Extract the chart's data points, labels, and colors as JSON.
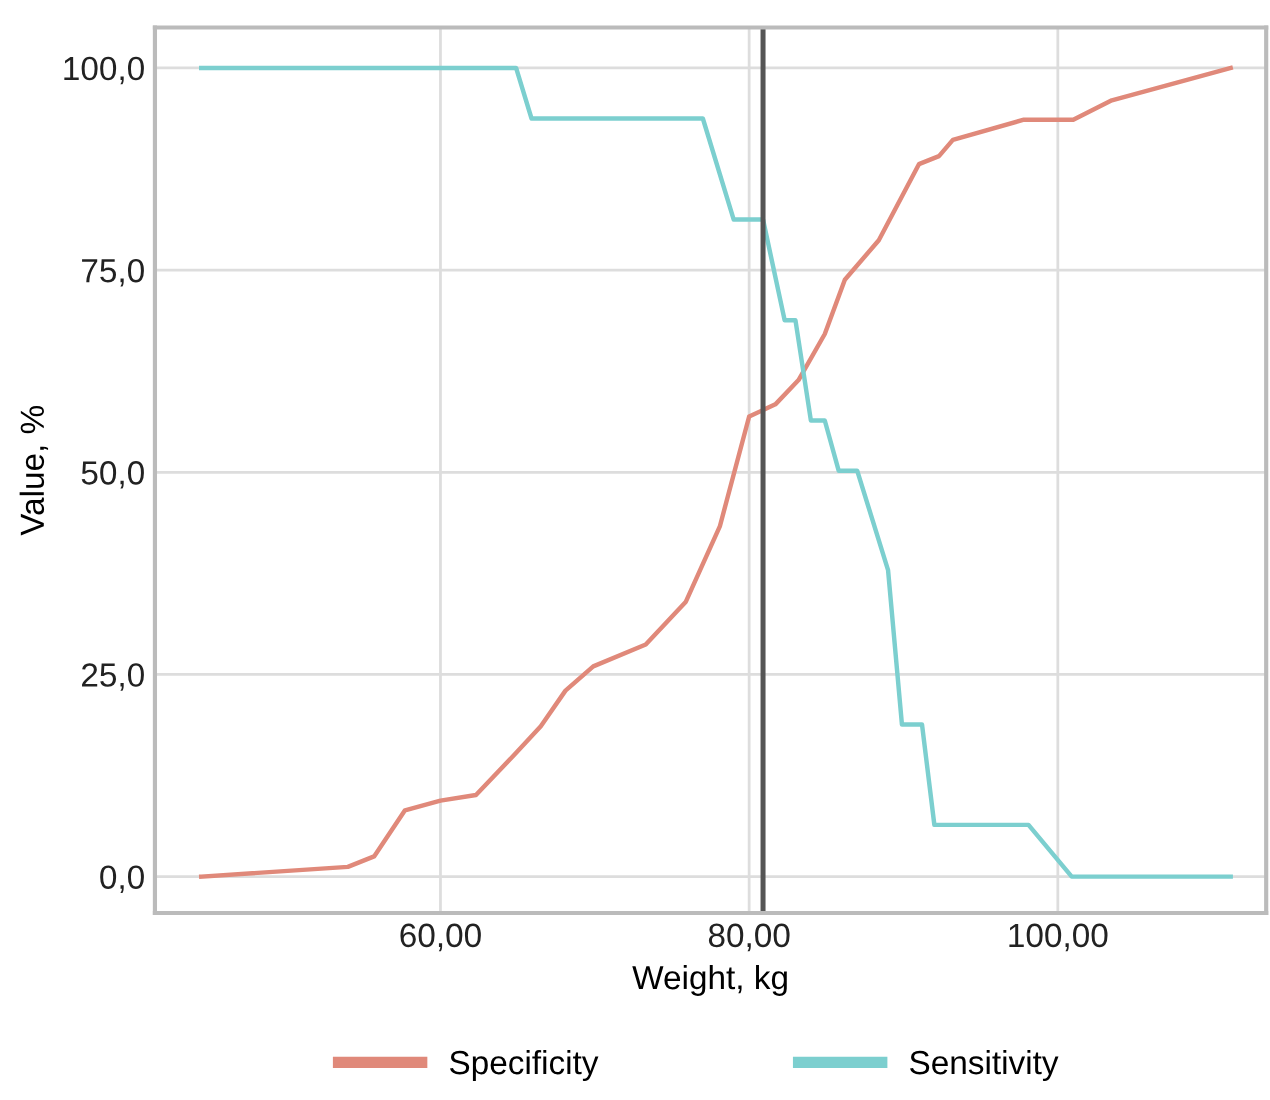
{
  "chart_data": {
    "type": "line",
    "xlabel": "Weight, kg",
    "ylabel": "Value, %",
    "xlim": [
      41.5,
      113.5
    ],
    "ylim": [
      -4.5,
      105
    ],
    "xticks": [
      {
        "value": 60,
        "label": "60,00"
      },
      {
        "value": 80,
        "label": "80,00"
      },
      {
        "value": 100,
        "label": "100,00"
      }
    ],
    "yticks": [
      {
        "value": 0,
        "label": "0,0"
      },
      {
        "value": 25,
        "label": "25,0"
      },
      {
        "value": 50,
        "label": "50,0"
      },
      {
        "value": 75,
        "label": "75,0"
      },
      {
        "value": 100,
        "label": "100,0"
      }
    ],
    "grid": true,
    "legend": "bottom",
    "line_style": "solid",
    "ref_lines": [
      {
        "axis": "x",
        "value": 80.9,
        "color": "#555555"
      }
    ],
    "series": [
      {
        "name": "Specificity",
        "color": "#e0897a",
        "x": [
          44.5,
          54.0,
          55.7,
          57.7,
          60,
          62.3,
          64.8,
          66.5,
          68.1,
          69.9,
          73.3,
          75.9,
          78.1,
          80,
          81.7,
          83.2,
          84.9,
          86.2,
          88.4,
          91.0,
          92.3,
          93.2,
          97.8,
          101.0,
          103.5,
          111.2
        ],
        "values": [
          0,
          1.2,
          2.5,
          8.2,
          9.4,
          10.1,
          15.1,
          18.6,
          23.0,
          26.0,
          28.7,
          34,
          43.3,
          56.9,
          58.4,
          61.4,
          67.1,
          73.8,
          78.7,
          88.1,
          89.1,
          91.1,
          93.6,
          93.6,
          96.0,
          100
        ]
      },
      {
        "name": "Sensitivity",
        "color": "#7ccfcf",
        "x": [
          44.5,
          64.9,
          65.9,
          77.0,
          79.0,
          80.9,
          82.3,
          83.0,
          84.0,
          84.9,
          85.8,
          87.0,
          89.0,
          89.9,
          91.2,
          92.0,
          98.1,
          100.9,
          111.2
        ],
        "values": [
          100,
          100,
          93.75,
          93.75,
          81.25,
          81.25,
          68.8,
          68.8,
          56.4,
          56.4,
          50.2,
          50.2,
          37.9,
          18.8,
          18.8,
          6.4,
          6.4,
          0,
          0
        ]
      }
    ]
  }
}
